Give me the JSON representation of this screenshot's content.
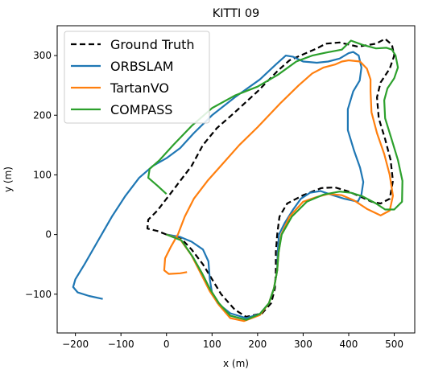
{
  "chart_data": {
    "type": "line",
    "title": "KITTI 09",
    "xlabel": "x (m)",
    "ylabel": "y (m)",
    "xlim": [
      -240,
      545
    ],
    "ylim": [
      -165,
      350
    ],
    "xticks": [
      -200,
      -100,
      0,
      100,
      200,
      300,
      400,
      500
    ],
    "yticks": [
      -100,
      0,
      100,
      200,
      300
    ],
    "legend_position": "upper-left",
    "grid": false,
    "series": [
      {
        "name": "Ground Truth",
        "color": "#000000",
        "dash": true,
        "points": [
          [
            0,
            0
          ],
          [
            -20,
            6
          ],
          [
            -42,
            10
          ],
          [
            -40,
            25
          ],
          [
            -20,
            40
          ],
          [
            -10,
            50
          ],
          [
            20,
            80
          ],
          [
            55,
            115
          ],
          [
            80,
            150
          ],
          [
            110,
            178
          ],
          [
            150,
            205
          ],
          [
            200,
            240
          ],
          [
            245,
            275
          ],
          [
            270,
            292
          ],
          [
            300,
            302
          ],
          [
            330,
            312
          ],
          [
            350,
            320
          ],
          [
            380,
            322
          ],
          [
            420,
            315
          ],
          [
            460,
            320
          ],
          [
            480,
            328
          ],
          [
            495,
            318
          ],
          [
            500,
            300
          ],
          [
            490,
            278
          ],
          [
            470,
            255
          ],
          [
            462,
            230
          ],
          [
            466,
            195
          ],
          [
            480,
            160
          ],
          [
            492,
            125
          ],
          [
            497,
            90
          ],
          [
            490,
            60
          ],
          [
            470,
            52
          ],
          [
            450,
            55
          ],
          [
            430,
            62
          ],
          [
            400,
            72
          ],
          [
            370,
            79
          ],
          [
            340,
            78
          ],
          [
            300,
            66
          ],
          [
            265,
            52
          ],
          [
            248,
            30
          ],
          [
            243,
            0
          ],
          [
            240,
            -30
          ],
          [
            240,
            -60
          ],
          [
            238,
            -90
          ],
          [
            230,
            -115
          ],
          [
            210,
            -132
          ],
          [
            175,
            -138
          ],
          [
            150,
            -126
          ],
          [
            120,
            -100
          ],
          [
            100,
            -75
          ],
          [
            80,
            -50
          ],
          [
            55,
            -25
          ],
          [
            30,
            -5
          ],
          [
            0,
            0
          ]
        ]
      },
      {
        "name": "ORBSLAM",
        "color": "#1f77b4",
        "dash": false,
        "points": [
          [
            -140,
            -108
          ],
          [
            -170,
            -103
          ],
          [
            -195,
            -97
          ],
          [
            -205,
            -88
          ],
          [
            -200,
            -75
          ],
          [
            -180,
            -50
          ],
          [
            -150,
            -10
          ],
          [
            -120,
            30
          ],
          [
            -90,
            65
          ],
          [
            -60,
            95
          ],
          [
            -30,
            115
          ],
          [
            0,
            128
          ],
          [
            30,
            145
          ],
          [
            60,
            170
          ],
          [
            100,
            200
          ],
          [
            150,
            230
          ],
          [
            205,
            260
          ],
          [
            240,
            285
          ],
          [
            262,
            300
          ],
          [
            278,
            298
          ],
          [
            300,
            290
          ],
          [
            330,
            288
          ],
          [
            355,
            290
          ],
          [
            380,
            295
          ],
          [
            400,
            304
          ],
          [
            410,
            306
          ],
          [
            422,
            300
          ],
          [
            428,
            280
          ],
          [
            424,
            258
          ],
          [
            410,
            240
          ],
          [
            398,
            210
          ],
          [
            398,
            175
          ],
          [
            412,
            140
          ],
          [
            425,
            112
          ],
          [
            432,
            88
          ],
          [
            428,
            67
          ],
          [
            420,
            55
          ],
          [
            390,
            60
          ],
          [
            365,
            66
          ],
          [
            338,
            73
          ],
          [
            315,
            70
          ],
          [
            295,
            60
          ],
          [
            278,
            42
          ],
          [
            260,
            20
          ],
          [
            247,
            0
          ],
          [
            244,
            -30
          ],
          [
            243,
            -60
          ],
          [
            236,
            -90
          ],
          [
            225,
            -115
          ],
          [
            205,
            -133
          ],
          [
            175,
            -140
          ],
          [
            140,
            -132
          ],
          [
            112,
            -115
          ],
          [
            100,
            -98
          ],
          [
            95,
            -75
          ],
          [
            92,
            -45
          ],
          [
            80,
            -25
          ],
          [
            55,
            -12
          ],
          [
            30,
            -4
          ],
          [
            0,
            0
          ]
        ]
      },
      {
        "name": "TartanVO",
        "color": "#ff7f0e",
        "dash": false,
        "points": [
          [
            45,
            -63
          ],
          [
            30,
            -65
          ],
          [
            5,
            -66
          ],
          [
            -5,
            -60
          ],
          [
            -3,
            -40
          ],
          [
            10,
            -20
          ],
          [
            25,
            0
          ],
          [
            40,
            30
          ],
          [
            60,
            60
          ],
          [
            90,
            90
          ],
          [
            125,
            120
          ],
          [
            160,
            150
          ],
          [
            200,
            180
          ],
          [
            250,
            220
          ],
          [
            290,
            250
          ],
          [
            320,
            270
          ],
          [
            345,
            280
          ],
          [
            370,
            285
          ],
          [
            385,
            290
          ],
          [
            400,
            292
          ],
          [
            425,
            290
          ],
          [
            440,
            278
          ],
          [
            448,
            260
          ],
          [
            448,
            240
          ],
          [
            450,
            205
          ],
          [
            462,
            170
          ],
          [
            478,
            135
          ],
          [
            490,
            100
          ],
          [
            497,
            65
          ],
          [
            490,
            40
          ],
          [
            470,
            32
          ],
          [
            440,
            43
          ],
          [
            412,
            57
          ],
          [
            385,
            66
          ],
          [
            355,
            68
          ],
          [
            330,
            63
          ],
          [
            300,
            55
          ],
          [
            270,
            30
          ],
          [
            252,
            0
          ],
          [
            246,
            -30
          ],
          [
            243,
            -60
          ],
          [
            236,
            -90
          ],
          [
            225,
            -115
          ],
          [
            205,
            -135
          ],
          [
            170,
            -145
          ],
          [
            140,
            -140
          ],
          [
            115,
            -118
          ],
          [
            95,
            -95
          ],
          [
            75,
            -65
          ],
          [
            55,
            -35
          ],
          [
            30,
            -8
          ],
          [
            0,
            0
          ]
        ]
      },
      {
        "name": "COMPASS",
        "color": "#2ca02c",
        "dash": false,
        "points": [
          [
            0,
            68
          ],
          [
            -20,
            82
          ],
          [
            -40,
            95
          ],
          [
            -37,
            110
          ],
          [
            -15,
            125
          ],
          [
            15,
            150
          ],
          [
            55,
            182
          ],
          [
            100,
            212
          ],
          [
            150,
            233
          ],
          [
            200,
            248
          ],
          [
            245,
            268
          ],
          [
            285,
            290
          ],
          [
            320,
            300
          ],
          [
            350,
            305
          ],
          [
            385,
            310
          ],
          [
            405,
            325
          ],
          [
            430,
            318
          ],
          [
            460,
            312
          ],
          [
            483,
            313
          ],
          [
            495,
            310
          ],
          [
            503,
            300
          ],
          [
            508,
            280
          ],
          [
            500,
            262
          ],
          [
            485,
            245
          ],
          [
            478,
            225
          ],
          [
            480,
            195
          ],
          [
            494,
            160
          ],
          [
            508,
            125
          ],
          [
            518,
            90
          ],
          [
            517,
            55
          ],
          [
            500,
            42
          ],
          [
            480,
            42
          ],
          [
            460,
            52
          ],
          [
            430,
            64
          ],
          [
            405,
            70
          ],
          [
            380,
            72
          ],
          [
            345,
            67
          ],
          [
            308,
            55
          ],
          [
            275,
            30
          ],
          [
            253,
            0
          ],
          [
            246,
            -30
          ],
          [
            243,
            -60
          ],
          [
            236,
            -90
          ],
          [
            225,
            -115
          ],
          [
            205,
            -133
          ],
          [
            175,
            -143
          ],
          [
            140,
            -136
          ],
          [
            115,
            -115
          ],
          [
            96,
            -92
          ],
          [
            78,
            -65
          ],
          [
            58,
            -38
          ],
          [
            33,
            -10
          ],
          [
            0,
            0
          ]
        ]
      }
    ]
  }
}
